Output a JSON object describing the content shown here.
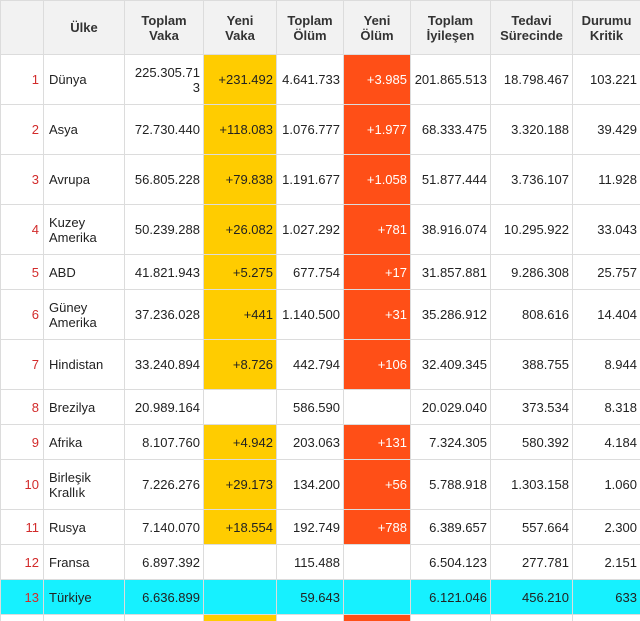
{
  "table": {
    "headers": {
      "rank": "",
      "country": "Ülke",
      "total_cases": "Toplam\nVaka",
      "new_cases": "Yeni\nVaka",
      "total_deaths": "Toplam\nÖlüm",
      "new_deaths": "Yeni\nÖlüm",
      "total_recovered": "Toplam\nİyileşen",
      "active": "Tedavi\nSürecinde",
      "critical": "Durumu\nKritik"
    },
    "rows": [
      {
        "rank": "1",
        "country": "Dünya",
        "total_cases": "225.305.713",
        "new_cases": "+231.492",
        "total_deaths": "4.641.733",
        "new_deaths": "+3.985",
        "total_recovered": "201.865.513",
        "active": "18.798.467",
        "critical": "103.221"
      },
      {
        "rank": "2",
        "country": "Asya",
        "total_cases": "72.730.440",
        "new_cases": "+118.083",
        "total_deaths": "1.076.777",
        "new_deaths": "+1.977",
        "total_recovered": "68.333.475",
        "active": "3.320.188",
        "critical": "39.429"
      },
      {
        "rank": "3",
        "country": "Avrupa",
        "total_cases": "56.805.228",
        "new_cases": "+79.838",
        "total_deaths": "1.191.677",
        "new_deaths": "+1.058",
        "total_recovered": "51.877.444",
        "active": "3.736.107",
        "critical": "11.928"
      },
      {
        "rank": "4",
        "country": "Kuzey Amerika",
        "total_cases": "50.239.288",
        "new_cases": "+26.082",
        "total_deaths": "1.027.292",
        "new_deaths": "+781",
        "total_recovered": "38.916.074",
        "active": "10.295.922",
        "critical": "33.043"
      },
      {
        "rank": "5",
        "country": "ABD",
        "total_cases": "41.821.943",
        "new_cases": "+5.275",
        "total_deaths": "677.754",
        "new_deaths": "+17",
        "total_recovered": "31.857.881",
        "active": "9.286.308",
        "critical": "25.757"
      },
      {
        "rank": "6",
        "country": "Güney Amerika",
        "total_cases": "37.236.028",
        "new_cases": "+441",
        "total_deaths": "1.140.500",
        "new_deaths": "+31",
        "total_recovered": "35.286.912",
        "active": "808.616",
        "critical": "14.404"
      },
      {
        "rank": "7",
        "country": "Hindistan",
        "total_cases": "33.240.894",
        "new_cases": "+8.726",
        "total_deaths": "442.794",
        "new_deaths": "+106",
        "total_recovered": "32.409.345",
        "active": "388.755",
        "critical": "8.944"
      },
      {
        "rank": "8",
        "country": "Brezilya",
        "total_cases": "20.989.164",
        "new_cases": "",
        "total_deaths": "586.590",
        "new_deaths": "",
        "total_recovered": "20.029.040",
        "active": "373.534",
        "critical": "8.318"
      },
      {
        "rank": "9",
        "country": "Afrika",
        "total_cases": "8.107.760",
        "new_cases": "+4.942",
        "total_deaths": "203.063",
        "new_deaths": "+131",
        "total_recovered": "7.324.305",
        "active": "580.392",
        "critical": "4.184"
      },
      {
        "rank": "10",
        "country": "Birleşik Krallık",
        "total_cases": "7.226.276",
        "new_cases": "+29.173",
        "total_deaths": "134.200",
        "new_deaths": "+56",
        "total_recovered": "5.788.918",
        "active": "1.303.158",
        "critical": "1.060"
      },
      {
        "rank": "11",
        "country": "Rusya",
        "total_cases": "7.140.070",
        "new_cases": "+18.554",
        "total_deaths": "192.749",
        "new_deaths": "+788",
        "total_recovered": "6.389.657",
        "active": "557.664",
        "critical": "2.300"
      },
      {
        "rank": "12",
        "country": "Fransa",
        "total_cases": "6.897.392",
        "new_cases": "",
        "total_deaths": "115.488",
        "new_deaths": "",
        "total_recovered": "6.504.123",
        "active": "277.781",
        "critical": "2.151"
      },
      {
        "rank": "13",
        "country": "Türkiye",
        "total_cases": "6.636.899",
        "new_cases": "",
        "total_deaths": "59.643",
        "new_deaths": "",
        "total_recovered": "6.121.046",
        "active": "456.210",
        "critical": "633"
      }
    ],
    "highlighted_country": "Türkiye"
  },
  "colors": {
    "new_cases_bg": "#ffcc00",
    "new_deaths_bg": "#ff4f17",
    "highlight_row_bg": "#16f1ff",
    "rank_text": "#d22b2b"
  }
}
